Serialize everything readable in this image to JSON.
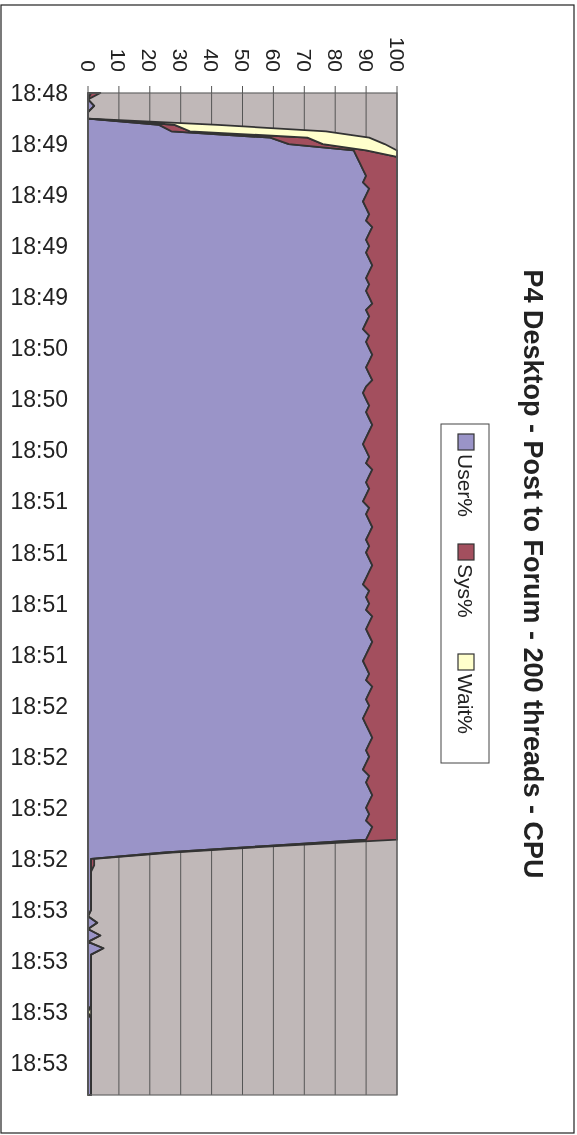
{
  "chart_data": {
    "type": "area",
    "title": "P4 Desktop - Post to Forum - 200 threads - CPU",
    "stacked": true,
    "orientation": "horizontal",
    "grid": "x",
    "legend": "right",
    "xlim": [
      0,
      100
    ],
    "xticks": [
      0,
      10,
      20,
      30,
      40,
      50,
      60,
      70,
      80,
      90,
      100
    ],
    "categories": [
      "18:48",
      null,
      null,
      null,
      null,
      null,
      null,
      null,
      "18:49",
      null,
      null,
      null,
      null,
      null,
      null,
      null,
      "18:49",
      null,
      null,
      null,
      null,
      null,
      null,
      null,
      "18:49",
      null,
      null,
      null,
      null,
      null,
      null,
      null,
      "18:49",
      null,
      null,
      null,
      null,
      null,
      null,
      null,
      "18:50",
      null,
      null,
      null,
      null,
      null,
      null,
      null,
      "18:50",
      null,
      null,
      null,
      null,
      null,
      null,
      null,
      "18:50",
      null,
      null,
      null,
      null,
      null,
      null,
      null,
      "18:51",
      null,
      null,
      null,
      null,
      null,
      null,
      null,
      "18:51",
      null,
      null,
      null,
      null,
      null,
      null,
      null,
      "18:51",
      null,
      null,
      null,
      null,
      null,
      null,
      null,
      "18:51",
      null,
      null,
      null,
      null,
      null,
      null,
      null,
      "18:52",
      null,
      null,
      null,
      null,
      null,
      null,
      null,
      "18:52",
      null,
      null,
      null,
      null,
      null,
      null,
      null,
      "18:52",
      null,
      null,
      null,
      null,
      null,
      null,
      null,
      "18:52",
      null,
      null,
      null,
      null,
      null,
      null,
      null,
      "18:53",
      null,
      null,
      null,
      null,
      null,
      null,
      null,
      "18:53",
      null,
      null,
      null,
      null,
      null,
      null,
      null,
      "18:53",
      null,
      null,
      null,
      null,
      null,
      null,
      null,
      "18:53",
      null,
      null,
      null,
      null,
      null
    ],
    "series": [
      {
        "name": "User%",
        "color": "#9a94c8",
        "values": [
          1,
          0,
          2,
          0,
          0,
          23,
          27,
          59,
          65,
          86,
          87,
          88,
          89,
          90,
          89,
          91,
          90,
          89,
          90,
          91,
          90,
          92,
          91,
          90,
          91,
          90,
          91,
          92,
          91,
          90,
          91,
          90,
          91,
          92,
          90,
          91,
          90,
          89,
          91,
          90,
          91,
          92,
          91,
          90,
          91,
          92,
          90,
          89,
          90,
          91,
          90,
          91,
          92,
          91,
          90,
          89,
          90,
          91,
          90,
          92,
          91,
          90,
          91,
          90,
          89,
          91,
          90,
          91,
          92,
          91,
          90,
          91,
          90,
          91,
          92,
          91,
          90,
          89,
          91,
          90,
          91,
          90,
          92,
          91,
          90,
          91,
          92,
          91,
          90,
          89,
          90,
          91,
          90,
          92,
          91,
          90,
          91,
          90,
          89,
          90,
          91,
          92,
          91,
          90,
          91,
          90,
          89,
          91,
          90,
          91,
          92,
          91,
          90,
          91,
          90,
          92,
          91,
          90,
          57,
          25,
          1,
          1,
          1,
          1,
          1,
          1,
          1,
          1,
          1,
          0,
          3,
          0,
          4,
          0,
          5,
          1,
          1,
          1,
          1,
          1,
          1,
          1,
          1,
          1,
          0,
          1,
          1,
          1,
          1,
          1,
          1,
          1,
          1,
          1,
          1,
          1,
          1,
          1
        ]
      },
      {
        "name": "Sys%",
        "color": "#a34f5e",
        "values": [
          3,
          0,
          0,
          0,
          0,
          5,
          6,
          12,
          11,
          4,
          13,
          12,
          11,
          10,
          11,
          9,
          10,
          11,
          10,
          9,
          10,
          8,
          9,
          10,
          9,
          10,
          9,
          8,
          9,
          10,
          9,
          10,
          9,
          8,
          10,
          9,
          10,
          11,
          9,
          10,
          9,
          8,
          9,
          10,
          9,
          8,
          10,
          11,
          10,
          9,
          10,
          9,
          8,
          9,
          10,
          11,
          10,
          9,
          10,
          8,
          9,
          10,
          9,
          10,
          11,
          9,
          10,
          9,
          8,
          9,
          10,
          9,
          10,
          9,
          8,
          9,
          10,
          11,
          9,
          10,
          9,
          10,
          8,
          9,
          10,
          9,
          8,
          9,
          10,
          11,
          10,
          9,
          10,
          8,
          9,
          10,
          9,
          10,
          11,
          10,
          9,
          8,
          9,
          10,
          9,
          10,
          11,
          9,
          10,
          9,
          8,
          9,
          10,
          9,
          10,
          8,
          9,
          10,
          4,
          2,
          1,
          1,
          0,
          0,
          0,
          0,
          0,
          0,
          0,
          0,
          0,
          0,
          0,
          0,
          0,
          0,
          0,
          0,
          0,
          0,
          0,
          0,
          0,
          0,
          0,
          0,
          0,
          0,
          0,
          0,
          0,
          0,
          0,
          0,
          0,
          0,
          0,
          0
        ]
      },
      {
        "name": "Wait%",
        "color": "#ffffcc",
        "values": [
          null,
          null,
          null,
          null,
          0,
          14,
          44,
          20,
          20,
          10,
          0,
          null,
          null,
          null,
          null,
          null,
          null,
          null,
          null,
          null,
          null,
          null,
          null,
          null,
          null,
          null,
          null,
          null,
          null,
          null,
          null,
          null,
          null,
          null,
          null,
          null,
          null,
          null,
          null,
          null,
          null,
          null,
          null,
          null,
          null,
          null,
          null,
          null,
          null,
          null,
          null,
          null,
          null,
          null,
          null,
          null,
          null,
          null,
          null,
          null,
          null,
          null,
          null,
          null,
          null,
          null,
          null,
          null,
          null,
          null,
          null,
          null,
          null,
          null,
          null,
          null,
          null,
          null,
          null,
          null,
          null,
          null,
          null,
          null,
          null,
          null,
          null,
          null,
          null,
          null,
          null,
          null,
          null,
          null,
          null,
          null,
          null,
          null,
          null,
          null,
          null,
          null,
          null,
          null,
          null,
          null,
          null,
          null,
          null,
          null,
          null,
          null,
          null,
          null,
          null,
          null,
          null,
          null,
          null,
          null,
          null,
          null,
          null,
          null,
          null,
          null,
          null,
          null,
          null,
          null,
          null,
          null,
          null,
          null,
          null,
          null,
          null,
          null,
          null,
          null,
          null,
          null,
          null,
          0,
          1,
          0,
          null,
          null,
          null,
          null,
          null,
          null,
          null,
          null,
          null,
          null,
          null,
          null
        ]
      }
    ]
  }
}
